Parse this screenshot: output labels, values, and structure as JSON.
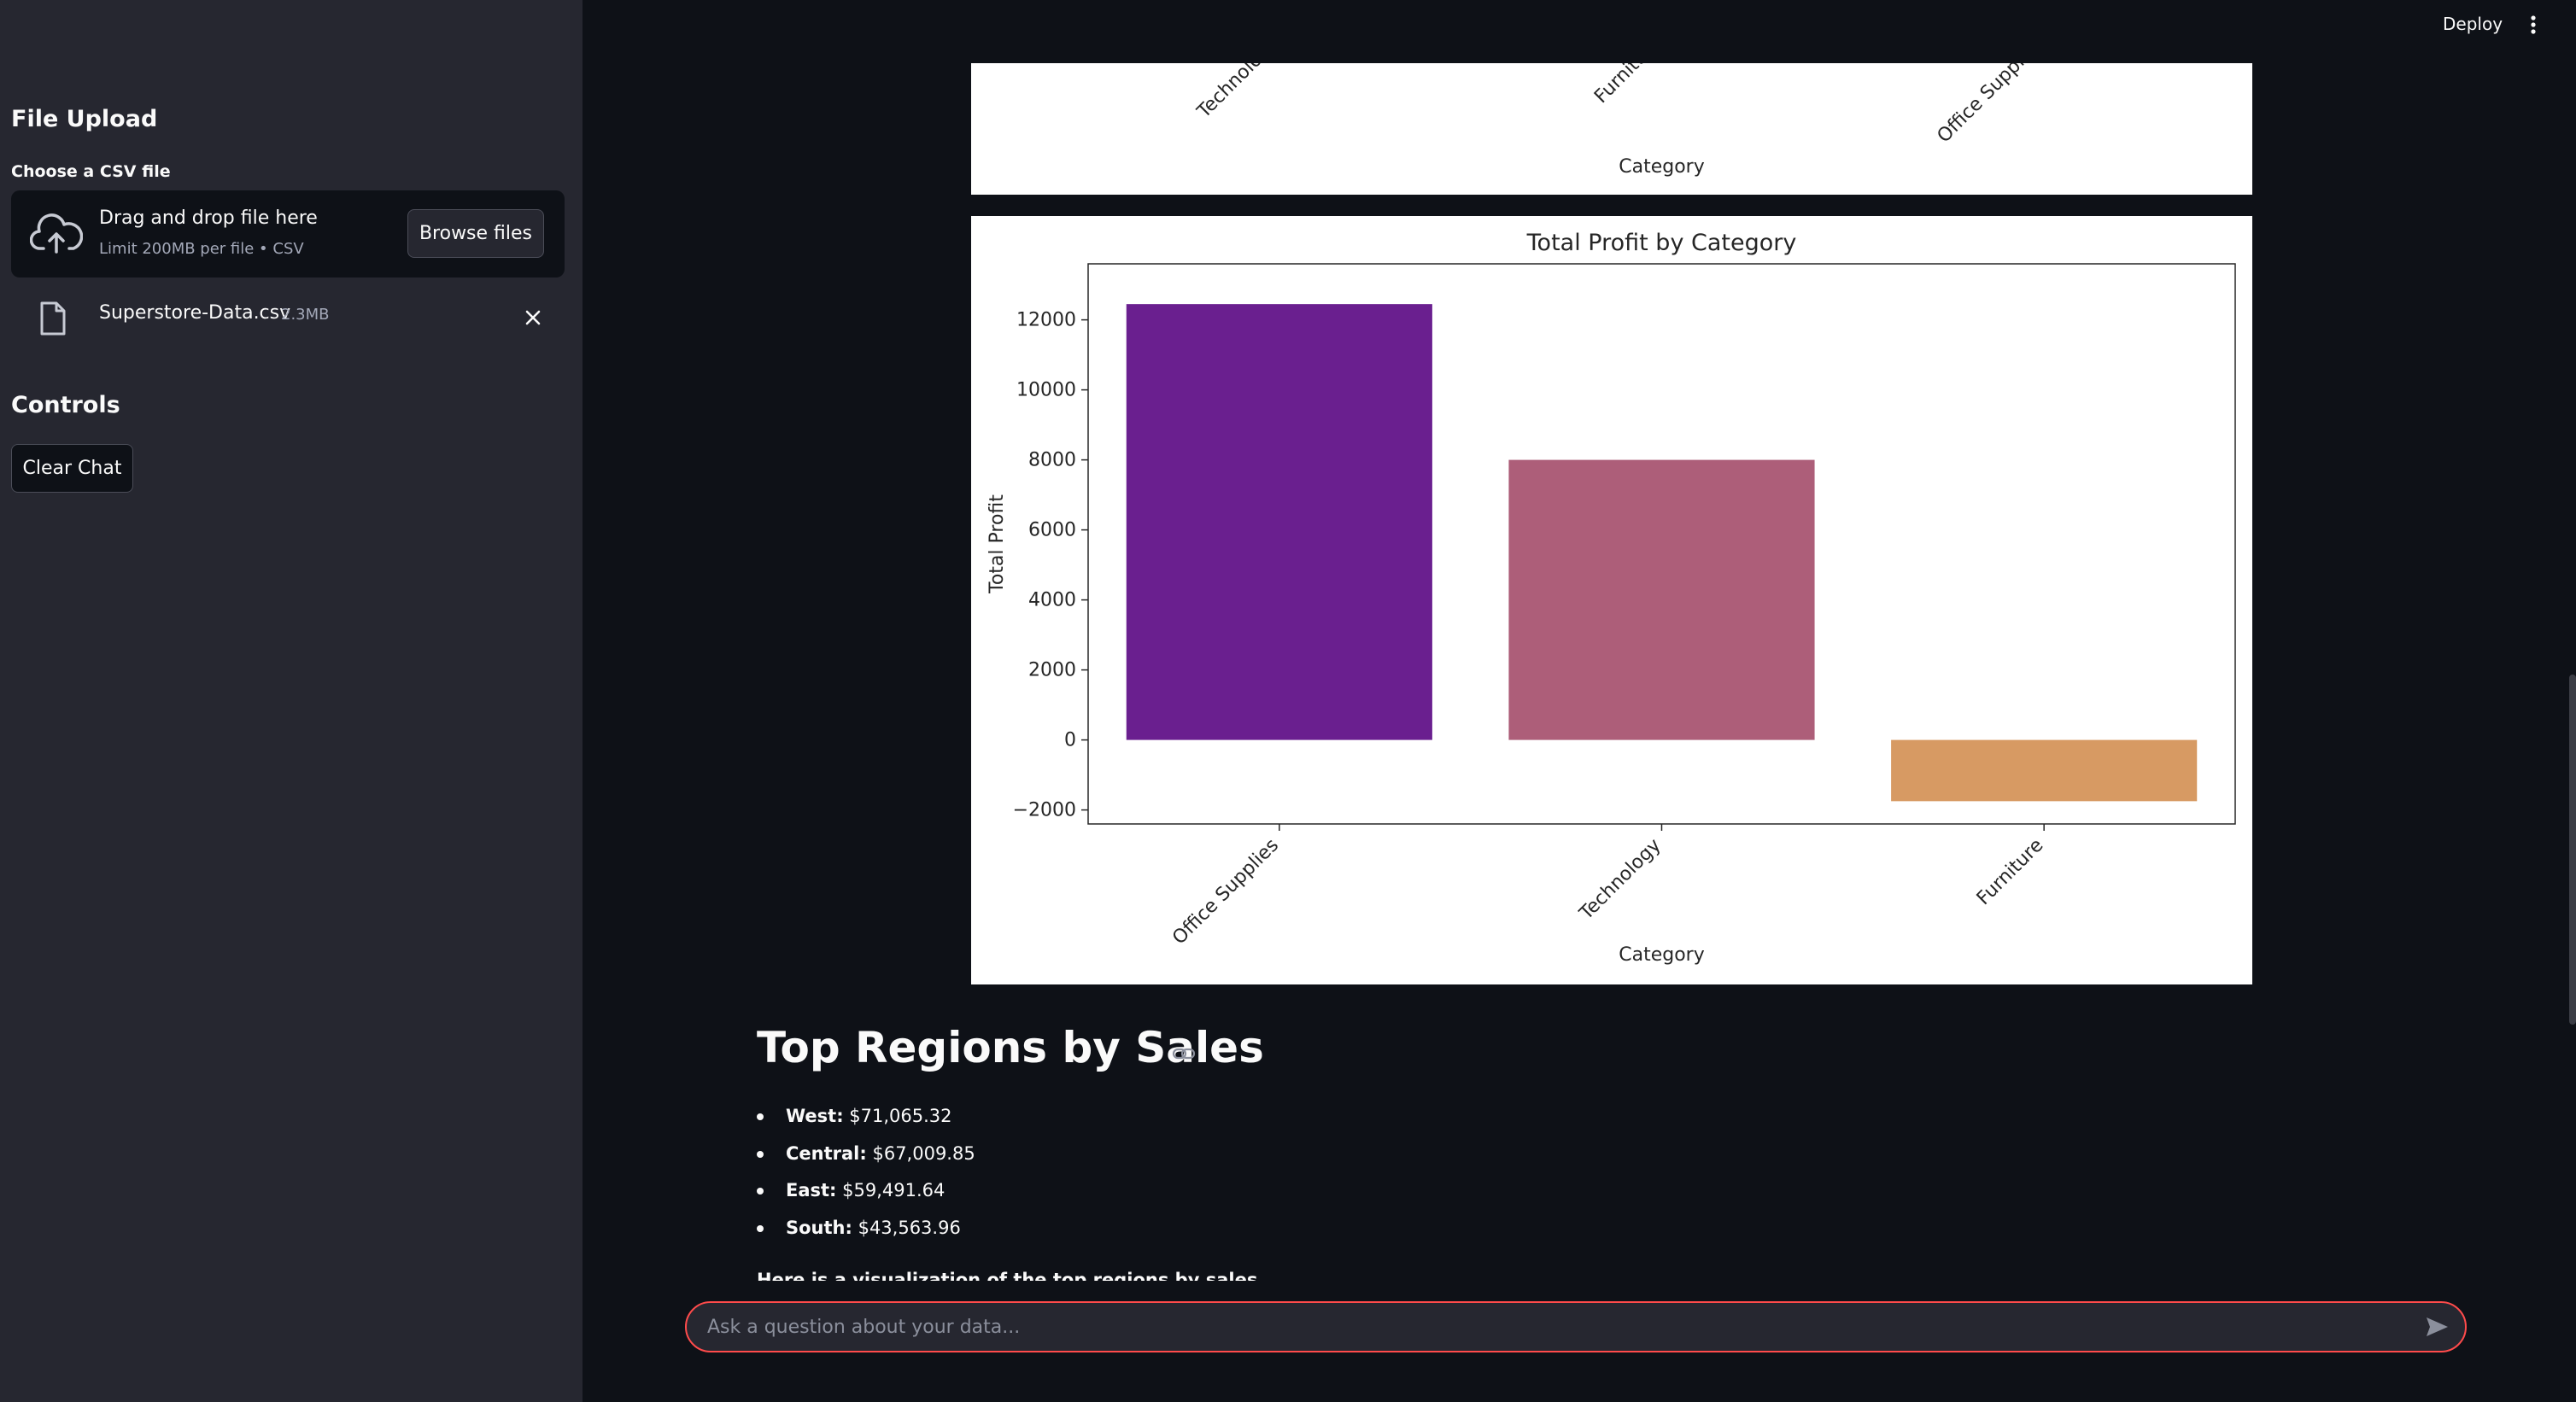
{
  "sidebar": {
    "upload_heading": "File Upload",
    "file_label": "Choose a CSV file",
    "dropzone_title": "Drag and drop file here",
    "dropzone_subtitle": "Limit 200MB per file • CSV",
    "browse_label": "Browse files",
    "file": {
      "name": "Superstore-Data.csv",
      "size": "2.3MB"
    },
    "controls_heading": "Controls",
    "clear_label": "Clear Chat"
  },
  "header": {
    "deploy_label": "Deploy",
    "menu_icon": "more-vertical-icon"
  },
  "chart_data": [
    {
      "type": "bar",
      "partially_visible": true,
      "categories": [
        "Technology",
        "Furniture",
        "Office Supplies"
      ],
      "xlabel": "Category"
    },
    {
      "type": "bar",
      "title": "Total Profit by Category",
      "xlabel": "Category",
      "ylabel": "Total Profit",
      "categories": [
        "Office Supplies",
        "Technology",
        "Furniture"
      ],
      "values": [
        12450,
        8000,
        -1750
      ],
      "colors": [
        "#6a1f8f",
        "#ad5e79",
        "#d79a63"
      ],
      "ylim": [
        -2400,
        13600
      ],
      "yticks": [
        -2000,
        0,
        2000,
        4000,
        6000,
        8000,
        10000,
        12000
      ],
      "ytick_labels": [
        "−2000",
        "0",
        "2000",
        "4000",
        "6000",
        "8000",
        "10000",
        "12000"
      ],
      "grid": false,
      "legend": "none"
    }
  ],
  "content": {
    "section_title": "Top Regions by Sales",
    "regions": [
      {
        "name": "West:",
        "value": "$71,065.32"
      },
      {
        "name": "Central:",
        "value": "$67,009.85"
      },
      {
        "name": "East:",
        "value": "$59,491.64"
      },
      {
        "name": "South:",
        "value": "$43,563.96"
      }
    ],
    "trailing_text": "Here is a visualization of the top regions by sales"
  },
  "chat": {
    "placeholder": "Ask a question about your data..."
  },
  "colors": {
    "app_bg": "#0e1117",
    "sidebar_bg": "#262730",
    "accent": "#ff4b4b"
  }
}
